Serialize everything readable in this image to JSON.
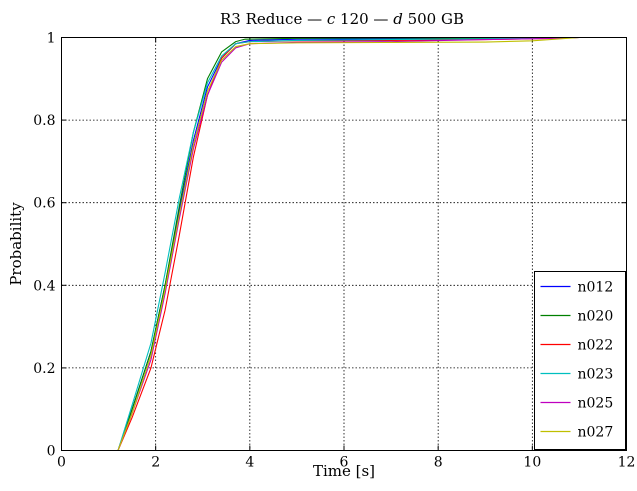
{
  "chart_data": {
    "type": "line",
    "title": "R3 Reduce — c 120 — d 500 GB",
    "title_parts": [
      {
        "text": "R3 Reduce — ",
        "italic": false
      },
      {
        "text": "c",
        "italic": true
      },
      {
        "text": " 120 — ",
        "italic": false
      },
      {
        "text": "d",
        "italic": true
      },
      {
        "text": " 500 GB",
        "italic": false
      }
    ],
    "xlabel": "Time [s]",
    "ylabel": "Probability",
    "xlim": [
      0,
      12
    ],
    "ylim": [
      0,
      1
    ],
    "xticks": [
      0,
      2,
      4,
      6,
      8,
      10,
      12
    ],
    "yticks": [
      0,
      0.2,
      0.4,
      0.6,
      0.8,
      1
    ],
    "xtick_labels": [
      "0",
      "2",
      "4",
      "6",
      "8",
      "10",
      "12"
    ],
    "ytick_labels": [
      "0",
      "0.2",
      "0.4",
      "0.6",
      "0.8",
      "1"
    ],
    "grid": true,
    "legend_position": "bottom-right",
    "series": [
      {
        "name": "n012",
        "color": "#0000ff",
        "x": [
          0,
          1.2,
          1.5,
          1.9,
          2.2,
          2.5,
          2.8,
          3.1,
          3.4,
          3.7,
          4.0,
          5.0,
          7.0,
          9.0,
          10.5,
          11.0
        ],
        "y": [
          0,
          0,
          0.1,
          0.24,
          0.4,
          0.58,
          0.75,
          0.88,
          0.95,
          0.985,
          0.993,
          0.996,
          0.997,
          0.998,
          0.999,
          1.0
        ]
      },
      {
        "name": "n020",
        "color": "#008000",
        "x": [
          0,
          1.2,
          1.5,
          1.9,
          2.2,
          2.5,
          2.8,
          3.1,
          3.4,
          3.7,
          3.9,
          5.0,
          7.0,
          9.0,
          10.5,
          11.0
        ],
        "y": [
          0,
          0,
          0.1,
          0.24,
          0.4,
          0.59,
          0.77,
          0.9,
          0.965,
          0.99,
          0.996,
          0.998,
          0.999,
          0.999,
          1.0,
          1.0
        ]
      },
      {
        "name": "n022",
        "color": "#ff0000",
        "x": [
          0,
          1.2,
          1.5,
          1.9,
          2.2,
          2.5,
          2.8,
          3.1,
          3.4,
          3.7,
          4.0,
          5.0,
          7.0,
          9.0,
          10.5,
          11.0
        ],
        "y": [
          0,
          0,
          0.08,
          0.2,
          0.34,
          0.52,
          0.71,
          0.86,
          0.95,
          0.985,
          0.99,
          0.992,
          0.993,
          0.995,
          0.998,
          1.0
        ]
      },
      {
        "name": "n023",
        "color": "#00bfbf",
        "x": [
          0,
          1.2,
          1.5,
          1.9,
          2.2,
          2.5,
          2.8,
          3.1,
          3.4,
          3.7,
          4.0,
          5.0,
          7.0,
          9.0,
          10.5,
          11.0
        ],
        "y": [
          0,
          0,
          0.11,
          0.26,
          0.43,
          0.61,
          0.77,
          0.89,
          0.955,
          0.985,
          0.99,
          0.993,
          0.995,
          0.997,
          0.999,
          1.0
        ]
      },
      {
        "name": "n025",
        "color": "#bf00bf",
        "x": [
          0,
          1.2,
          1.5,
          1.9,
          2.2,
          2.5,
          2.8,
          3.1,
          3.4,
          3.7,
          4.0,
          5.0,
          7.0,
          9.0,
          10.5,
          11.0
        ],
        "y": [
          0,
          0,
          0.09,
          0.22,
          0.38,
          0.56,
          0.73,
          0.86,
          0.94,
          0.975,
          0.985,
          0.988,
          0.99,
          0.995,
          0.998,
          1.0
        ]
      },
      {
        "name": "n027",
        "color": "#bfbf00",
        "x": [
          0,
          1.2,
          1.5,
          1.9,
          2.2,
          2.5,
          2.8,
          3.1,
          3.4,
          3.7,
          4.0,
          5.0,
          7.0,
          9.0,
          10.0,
          11.0
        ],
        "y": [
          0,
          0,
          0.09,
          0.23,
          0.39,
          0.57,
          0.74,
          0.87,
          0.945,
          0.978,
          0.985,
          0.987,
          0.988,
          0.989,
          0.992,
          1.0
        ]
      }
    ]
  }
}
